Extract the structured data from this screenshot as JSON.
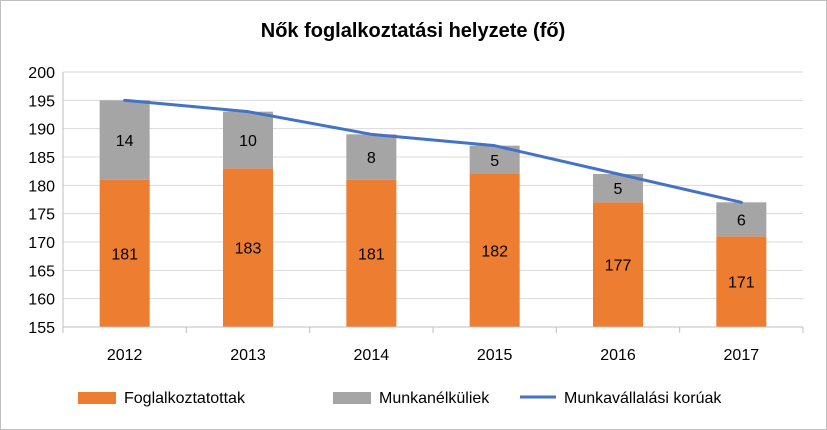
{
  "chart_data": {
    "type": "bar",
    "title": "Nők foglalkoztatási helyzete (fő)",
    "categories": [
      "2012",
      "2013",
      "2014",
      "2015",
      "2016",
      "2017"
    ],
    "series": [
      {
        "name": "Foglalkoztatottak",
        "kind": "bar",
        "stack": "main",
        "color": "#ed7d31",
        "values": [
          181,
          183,
          181,
          182,
          177,
          171
        ]
      },
      {
        "name": "Munkanélküliek",
        "kind": "bar",
        "stack": "main",
        "color": "#a5a5a5",
        "values": [
          14,
          10,
          8,
          5,
          5,
          6
        ]
      },
      {
        "name": "Munkavállalási korúak",
        "kind": "line",
        "color": "#4472c4",
        "values": [
          195,
          193,
          189,
          187,
          182,
          177
        ]
      }
    ],
    "ylim": [
      155,
      200
    ],
    "yticks": [
      155,
      160,
      165,
      170,
      175,
      180,
      185,
      190,
      195,
      200
    ],
    "ytick_labels": [
      "155",
      "160",
      "165",
      "170",
      "175",
      "180",
      "185",
      "190",
      "195",
      "200"
    ],
    "xlabel": "",
    "ylabel": "",
    "grid": true,
    "legend_position": "bottom"
  }
}
